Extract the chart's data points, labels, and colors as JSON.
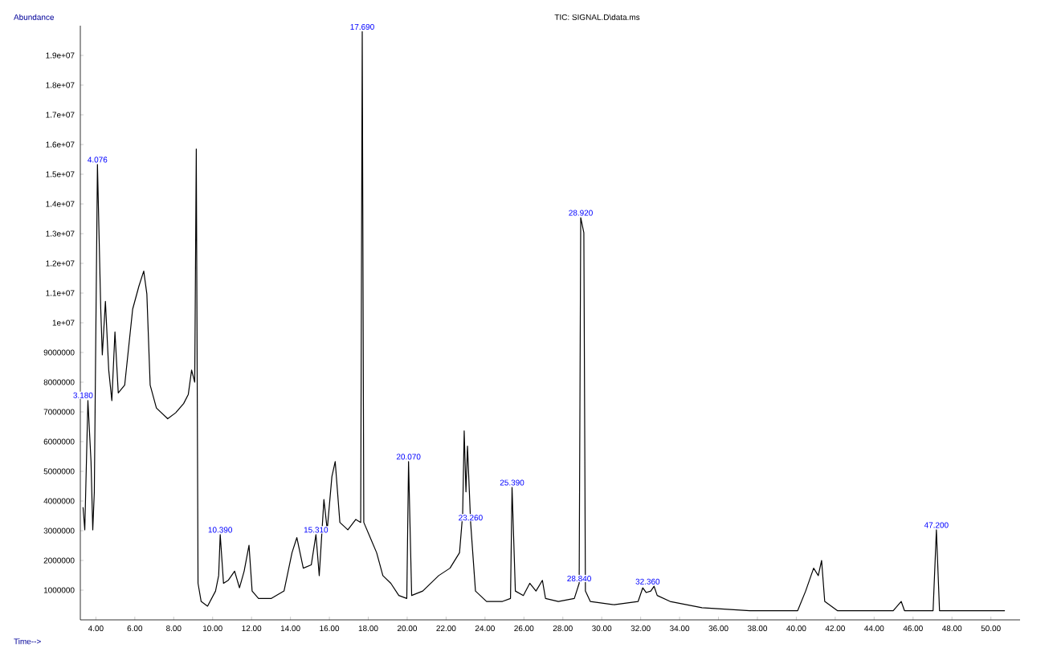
{
  "chart_data": {
    "type": "line",
    "title": "TIC: SIGNAL.D\\data.ms",
    "xlabel": "Time-->",
    "ylabel": "Abundance",
    "x": [
      3.34,
      3.43,
      3.59,
      3.75,
      3.84,
      3.92,
      4.08,
      4.25,
      4.33,
      4.49,
      4.66,
      4.82,
      4.98,
      5.15,
      5.48,
      5.89,
      6.21,
      6.46,
      6.62,
      6.79,
      7.11,
      7.69,
      8.1,
      8.51,
      8.75,
      8.92,
      9.08,
      9.16,
      9.25,
      9.41,
      9.74,
      10.15,
      10.31,
      10.39,
      10.56,
      10.8,
      11.13,
      11.38,
      11.62,
      11.87,
      12.03,
      12.36,
      13.02,
      13.67,
      14.08,
      14.33,
      14.66,
      15.07,
      15.31,
      15.48,
      15.72,
      15.89,
      16.13,
      16.3,
      16.54,
      16.95,
      17.36,
      17.61,
      17.69,
      17.77,
      18.1,
      18.43,
      18.75,
      19.16,
      19.57,
      19.98,
      20.07,
      20.23,
      20.8,
      21.62,
      22.2,
      22.69,
      22.85,
      22.93,
      23.02,
      23.1,
      23.26,
      23.51,
      24.08,
      24.9,
      25.31,
      25.39,
      25.56,
      25.97,
      26.3,
      26.62,
      26.95,
      27.11,
      27.77,
      28.59,
      28.84,
      28.92,
      29.08,
      29.16,
      29.41,
      30.64,
      31.87,
      32.11,
      32.28,
      32.52,
      32.69,
      32.85,
      33.51,
      35.15,
      37.61,
      40.07,
      40.48,
      40.89,
      41.13,
      41.3,
      41.46,
      42.11,
      44.98,
      45.39,
      45.56,
      47.03,
      47.2,
      47.36,
      50.72
    ],
    "series": [
      {
        "color": "#000000",
        "values": [
          3790000,
          3030000,
          7380000,
          5330000,
          3030000,
          4310000,
          15330000,
          10460000,
          8920000,
          10720000,
          8410000,
          7380000,
          9690000,
          7640000,
          7900000,
          10460000,
          11230000,
          11740000,
          10970000,
          7900000,
          7130000,
          6770000,
          6970000,
          7280000,
          7590000,
          8410000,
          8000000,
          15850000,
          1230000,
          620000,
          460000,
          970000,
          1490000,
          2870000,
          1230000,
          1330000,
          1640000,
          1080000,
          1640000,
          2510000,
          970000,
          720000,
          720000,
          970000,
          2260000,
          2770000,
          1740000,
          1850000,
          2870000,
          1490000,
          4050000,
          3030000,
          4820000,
          5330000,
          3280000,
          3030000,
          3380000,
          3280000,
          19800000,
          3280000,
          2770000,
          2260000,
          1490000,
          1230000,
          820000,
          720000,
          5330000,
          820000,
          970000,
          1490000,
          1740000,
          2260000,
          3540000,
          6360000,
          4310000,
          5850000,
          3280000,
          970000,
          620000,
          620000,
          720000,
          4460000,
          970000,
          820000,
          1230000,
          970000,
          1330000,
          720000,
          620000,
          720000,
          1230000,
          13540000,
          13030000,
          970000,
          620000,
          510000,
          620000,
          1080000,
          920000,
          970000,
          1130000,
          820000,
          620000,
          410000,
          310000,
          310000,
          970000,
          1740000,
          1490000,
          2000000,
          620000,
          310000,
          310000,
          620000,
          310000,
          310000,
          3030000,
          310000,
          310000
        ]
      }
    ],
    "xlim": [
      3.2,
      51.5
    ],
    "xticks": [
      {
        "value": 4,
        "label": "4.00"
      },
      {
        "value": 6,
        "label": "6.00"
      },
      {
        "value": 8,
        "label": "8.00"
      },
      {
        "value": 10,
        "label": "10.00"
      },
      {
        "value": 12,
        "label": "12.00"
      },
      {
        "value": 14,
        "label": "14.00"
      },
      {
        "value": 16,
        "label": "16.00"
      },
      {
        "value": 18,
        "label": "18.00"
      },
      {
        "value": 20,
        "label": "20.00"
      },
      {
        "value": 22,
        "label": "22.00"
      },
      {
        "value": 24,
        "label": "24.00"
      },
      {
        "value": 26,
        "label": "26.00"
      },
      {
        "value": 28,
        "label": "28.00"
      },
      {
        "value": 30,
        "label": "30.00"
      },
      {
        "value": 32,
        "label": "32.00"
      },
      {
        "value": 34,
        "label": "34.00"
      },
      {
        "value": 36,
        "label": "36.00"
      },
      {
        "value": 38,
        "label": "38.00"
      },
      {
        "value": 40,
        "label": "40.00"
      },
      {
        "value": 42,
        "label": "42.00"
      },
      {
        "value": 44,
        "label": "44.00"
      },
      {
        "value": 46,
        "label": "46.00"
      },
      {
        "value": 48,
        "label": "48.00"
      },
      {
        "value": 50,
        "label": "50.00"
      }
    ],
    "ylim": [
      0,
      20000000
    ],
    "yticks": [
      1000000,
      2000000,
      3000000,
      4000000,
      5000000,
      6000000,
      7000000,
      8000000,
      9000000,
      {
        "value": 10000000,
        "label": "1e+07"
      },
      {
        "value": 11000000,
        "label": "1.1e+07"
      },
      {
        "value": 12000000,
        "label": "1.2e+07"
      },
      {
        "value": 13000000,
        "label": "1.3e+07"
      },
      {
        "value": 14000000,
        "label": "1.4e+07"
      },
      {
        "value": 15000000,
        "label": "1.5e+07"
      },
      {
        "value": 16000000,
        "label": "1.6e+07"
      },
      {
        "value": 17000000,
        "label": "1.7e+07"
      },
      {
        "value": 18000000,
        "label": "1.8e+07"
      },
      {
        "value": 19000000,
        "label": "1.9e+07"
      }
    ],
    "annotations": [
      {
        "text": "3.180",
        "x": 3.34,
        "y": 7400000
      },
      {
        "text": "4.076",
        "x": 4.08,
        "y": 15330000
      },
      {
        "text": "10.390",
        "x": 10.39,
        "y": 2870000
      },
      {
        "text": "15.310",
        "x": 15.31,
        "y": 2870000
      },
      {
        "text": "17.690",
        "x": 17.69,
        "y": 19800000
      },
      {
        "text": "20.070",
        "x": 20.07,
        "y": 5330000
      },
      {
        "text": "23.260",
        "x": 23.26,
        "y": 3280000
      },
      {
        "text": "25.390",
        "x": 25.39,
        "y": 4460000
      },
      {
        "text": "28.920",
        "x": 28.92,
        "y": 13540000
      },
      {
        "text": "28.840",
        "x": 28.84,
        "y": 1230000
      },
      {
        "text": "32.360",
        "x": 32.36,
        "y": 1130000
      },
      {
        "text": "47.200",
        "x": 47.2,
        "y": 3030000
      }
    ]
  }
}
